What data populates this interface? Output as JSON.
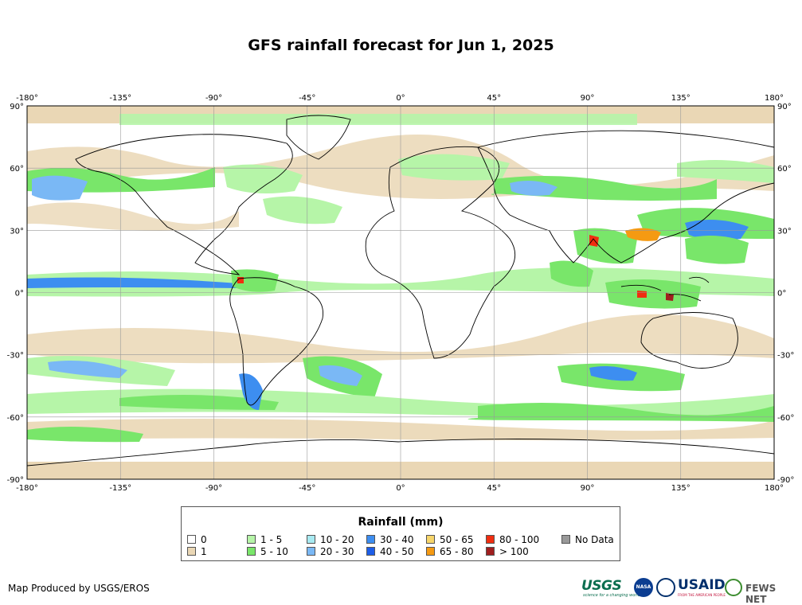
{
  "title": "GFS rainfall forecast for Jun 1, 2025",
  "map": {
    "lon_ticks": [
      "-180°",
      "-135°",
      "-90°",
      "-45°",
      "0°",
      "45°",
      "90°",
      "135°",
      "180°"
    ],
    "lat_ticks": [
      "90°",
      "60°",
      "30°",
      "0°",
      "-30°",
      "-60°",
      "-90°"
    ],
    "lon_range": [
      -180,
      180
    ],
    "lat_range": [
      -90,
      90
    ],
    "grid": true
  },
  "legend": {
    "title": "Rainfall (mm)",
    "items": [
      {
        "label": "0",
        "color": "#ffffff"
      },
      {
        "label": "1",
        "color": "#ead7b5"
      },
      {
        "label": "1 - 5",
        "color": "#b6f5a8"
      },
      {
        "label": "5 - 10",
        "color": "#79e66a"
      },
      {
        "label": "10 - 20",
        "color": "#a8eaf2"
      },
      {
        "label": "20 - 30",
        "color": "#7ab8f5"
      },
      {
        "label": "30 - 40",
        "color": "#3d8ef0"
      },
      {
        "label": "40 - 50",
        "color": "#1d5ee8"
      },
      {
        "label": "50 - 65",
        "color": "#f7d56a"
      },
      {
        "label": "65 - 80",
        "color": "#f59a12"
      },
      {
        "label": "80 - 100",
        "color": "#f02e10"
      },
      {
        "label": "> 100",
        "color": "#a01e1e"
      },
      {
        "label": "No Data",
        "color": "#999999"
      }
    ]
  },
  "credit": "Map Produced by USGS/EROS",
  "logos": {
    "usgs": "USGS",
    "usgs_tagline": "science for a changing world",
    "nasa": "NASA",
    "usaid": "USAID",
    "usaid_tagline": "FROM THE AMERICAN PEOPLE",
    "fews": "FEWS NET"
  }
}
